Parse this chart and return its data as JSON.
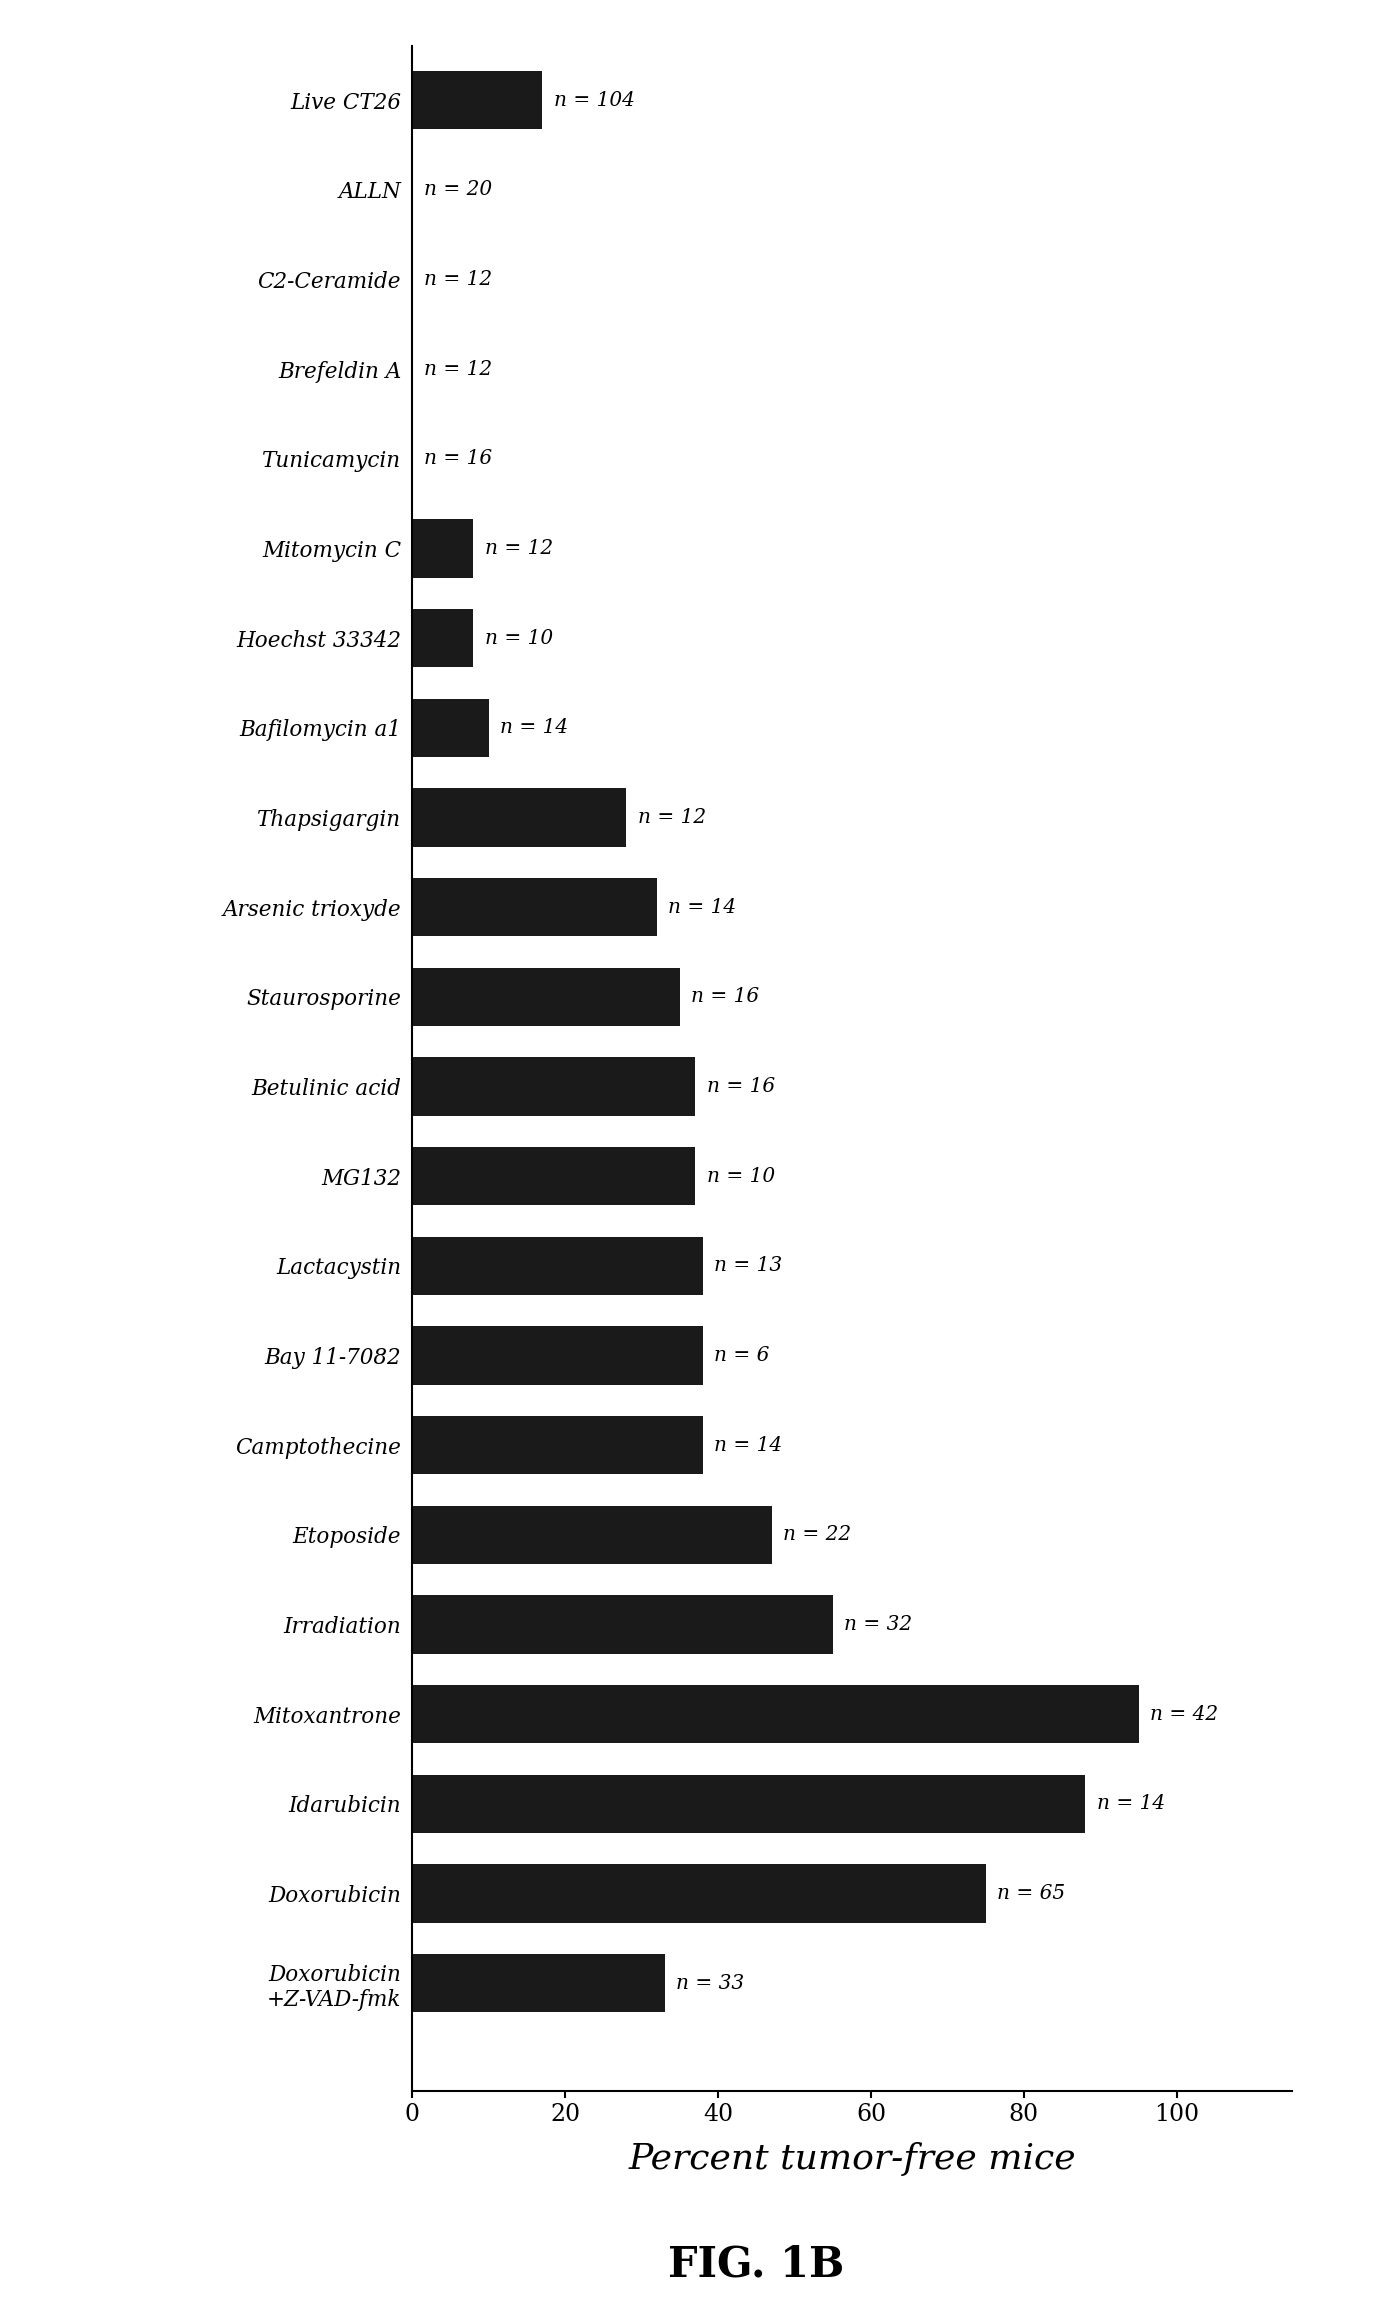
{
  "categories": [
    "Live CT26",
    "ALLN",
    "C2-Ceramide",
    "Brefeldin A",
    "Tunicamycin",
    "Mitomycin C",
    "Hoechst 33342",
    "Bafilomycin a1",
    "Thapsigargin",
    "Arsenic trioxyde",
    "Staurosporine",
    "Betulinic acid",
    "MG132",
    "Lactacystin",
    "Bay 11-7082",
    "Camptothecine",
    "Etoposide",
    "Irradiation",
    "Mitoxantrone",
    "Idarubicin",
    "Doxorubicin",
    "Doxorubicin\n+Z-VAD-fmk"
  ],
  "values": [
    17,
    0,
    0,
    0,
    0,
    8,
    8,
    10,
    28,
    32,
    35,
    37,
    37,
    38,
    38,
    38,
    47,
    55,
    95,
    88,
    75,
    33
  ],
  "n_labels": [
    "n = 104",
    "n = 20",
    "n = 12",
    "n = 12",
    "n = 16",
    "n = 12",
    "n = 10",
    "n = 14",
    "n = 12",
    "n = 14",
    "n = 16",
    "n = 16",
    "n = 10",
    "n = 13",
    "n = 6",
    "n = 14",
    "n = 22",
    "n = 32",
    "n = 42",
    "n = 14",
    "n = 65",
    "n = 33"
  ],
  "bar_color": "#1a1a1a",
  "xlabel": "Percent tumor-free mice",
  "xlim": [
    0,
    115
  ],
  "xticks": [
    0,
    20,
    40,
    60,
    80,
    100
  ],
  "figure_title": "FIG. 1B",
  "background_color": "#ffffff"
}
